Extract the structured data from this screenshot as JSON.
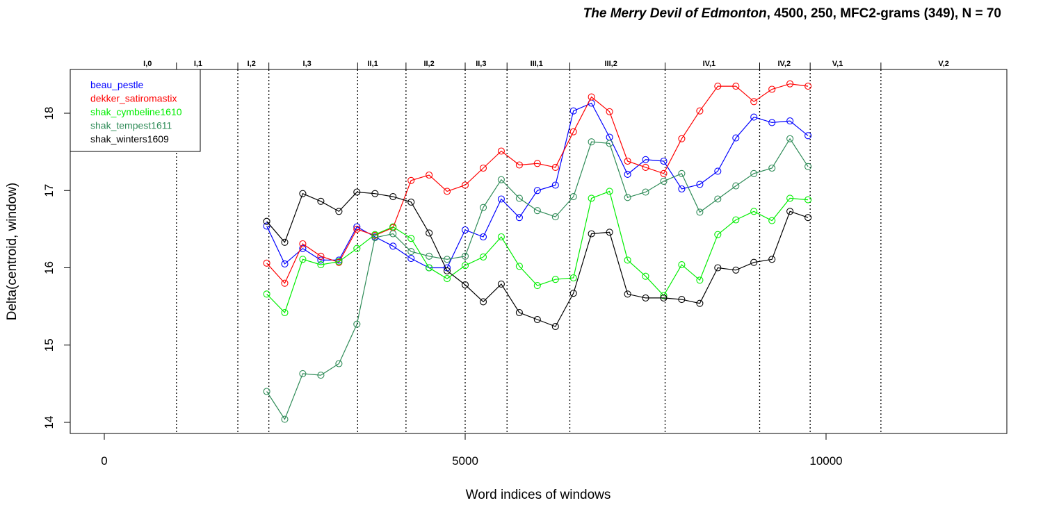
{
  "chart_data": {
    "type": "line",
    "title_italic": "The Merry Devil of Edmonton",
    "title_rest": ", 4500, 250, MFC2-grams (349), N = 70",
    "xlabel": "Word indices of windows",
    "ylabel": "Delta(centroid, window)",
    "xlim": [
      -500,
      12500
    ],
    "ylim": [
      13.85,
      18.6
    ],
    "xticks": [
      0,
      5000,
      10000
    ],
    "xtick_labels": [
      "0",
      "5000",
      "10000"
    ],
    "yticks": [
      14,
      15,
      16,
      17,
      18
    ],
    "ytick_labels": [
      "14",
      "15",
      "16",
      "17",
      "18"
    ],
    "grid": false,
    "legend_position": "top-left",
    "scene_boundaries": [
      1000,
      1850,
      2280,
      3510,
      4180,
      5000,
      5580,
      6450,
      7770,
      9080,
      9780,
      10760
    ],
    "scene_labels": [
      {
        "label": "I,0",
        "x": 600
      },
      {
        "label": "I,1",
        "x": 1300
      },
      {
        "label": "I,2",
        "x": 2040
      },
      {
        "label": "I,3",
        "x": 2810
      },
      {
        "label": "II,1",
        "x": 3720
      },
      {
        "label": "II,2",
        "x": 4500
      },
      {
        "label": "II,3",
        "x": 5220
      },
      {
        "label": "III,1",
        "x": 5990
      },
      {
        "label": "III,2",
        "x": 7020
      },
      {
        "label": "IV,1",
        "x": 8380
      },
      {
        "label": "IV,2",
        "x": 9420
      },
      {
        "label": "V,1",
        "x": 10160
      },
      {
        "label": "V,2",
        "x": 11630
      }
    ],
    "x": [
      2250,
      2500,
      2750,
      3000,
      3250,
      3500,
      3750,
      4000,
      4250,
      4500,
      4750,
      5000,
      5250,
      5500,
      5750,
      6000,
      6250,
      6500,
      6750,
      7000,
      7250,
      7500,
      7750,
      8000,
      8250,
      8500,
      8750,
      9000,
      9250,
      9500,
      9750
    ],
    "series": [
      {
        "name": "beau_pestle",
        "color": "#0000ff",
        "values": [
          16.54,
          16.05,
          16.25,
          16.1,
          16.1,
          16.53,
          16.4,
          16.28,
          16.12,
          16.0,
          16.0,
          16.49,
          16.4,
          16.89,
          16.65,
          17.0,
          17.07,
          18.03,
          18.13,
          17.69,
          17.21,
          17.4,
          17.38,
          17.02,
          17.08,
          17.25,
          17.68,
          17.95,
          17.88,
          17.9,
          17.71
        ]
      },
      {
        "name": "dekker_satiromastix",
        "color": "#ff0000",
        "values": [
          16.06,
          15.8,
          16.31,
          16.15,
          16.07,
          16.5,
          16.42,
          16.52,
          17.13,
          17.2,
          16.99,
          17.07,
          17.29,
          17.51,
          17.33,
          17.35,
          17.3,
          17.76,
          18.21,
          18.02,
          17.38,
          17.3,
          17.22,
          17.67,
          18.03,
          18.35,
          18.35,
          18.15,
          18.31,
          18.38,
          18.35
        ]
      },
      {
        "name": "shak_cymbeline1610",
        "color": "#00ee00",
        "values": [
          15.66,
          15.42,
          16.11,
          16.04,
          16.08,
          16.25,
          16.43,
          16.53,
          16.38,
          16.0,
          15.86,
          16.03,
          16.14,
          16.4,
          16.02,
          15.77,
          15.85,
          15.87,
          16.9,
          16.99,
          16.1,
          15.89,
          15.64,
          16.04,
          15.84,
          16.43,
          16.62,
          16.73,
          16.61,
          16.9,
          16.88
        ]
      },
      {
        "name": "shak_tempest1611",
        "color": "#2e8b57",
        "values": [
          14.4,
          14.04,
          14.63,
          14.61,
          14.76,
          15.27,
          16.39,
          16.44,
          16.21,
          16.15,
          16.11,
          16.15,
          16.78,
          17.14,
          16.9,
          16.74,
          16.66,
          16.92,
          17.63,
          17.61,
          16.91,
          16.98,
          17.12,
          17.22,
          16.72,
          16.89,
          17.06,
          17.22,
          17.29,
          17.67,
          17.31
        ]
      },
      {
        "name": "shak_winters1609",
        "color": "#000000",
        "values": [
          16.6,
          16.33,
          16.96,
          16.86,
          16.73,
          16.98,
          16.96,
          16.92,
          16.85,
          16.45,
          15.96,
          15.78,
          15.56,
          15.79,
          15.42,
          15.33,
          15.24,
          15.67,
          16.44,
          16.46,
          15.66,
          15.61,
          15.61,
          15.59,
          15.54,
          16.0,
          15.97,
          16.07,
          16.11,
          16.73,
          16.65
        ]
      }
    ]
  }
}
